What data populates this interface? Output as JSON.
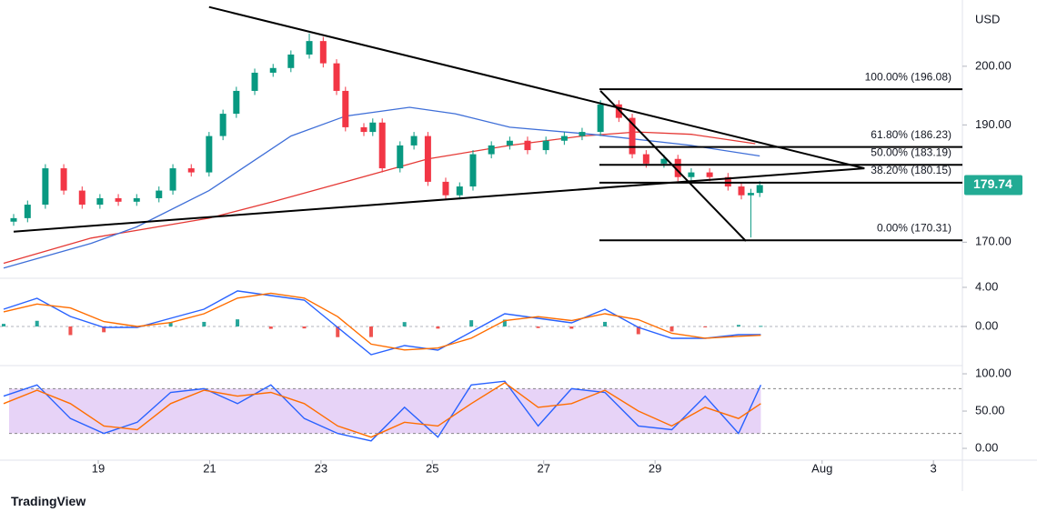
{
  "chart_data": [
    {
      "type": "candlestick",
      "currency": "USD",
      "candles": {
        "x": [
          17.48,
          17.73,
          18.05,
          18.38,
          18.71,
          19.03,
          19.36,
          19.69,
          20.09,
          20.34,
          20.67,
          20.99,
          21.24,
          21.48,
          21.81,
          22.14,
          22.46,
          22.79,
          23.04,
          23.28,
          23.44,
          23.77,
          23.93,
          24.1,
          24.42,
          24.67,
          24.92,
          25.24,
          25.49,
          25.73,
          26.06,
          26.39,
          26.71,
          27.04,
          27.37,
          27.69,
          28.02,
          28.35,
          28.59,
          28.84,
          29.16,
          29.41,
          29.65,
          29.98,
          30.31,
          30.55,
          30.72,
          30.88
        ],
        "open": [
          173.5,
          174.1,
          176.4,
          182.6,
          178.8,
          176.4,
          177.5,
          176.9,
          177.5,
          178.8,
          182.6,
          181.9,
          188.1,
          191.9,
          195.8,
          198.9,
          199.7,
          202.0,
          204.3,
          200.5,
          195.8,
          189.6,
          188.8,
          190.4,
          182.6,
          186.5,
          188.1,
          180.3,
          178.0,
          179.5,
          185.0,
          186.5,
          187.3,
          185.7,
          187.3,
          188.1,
          188.8,
          193.5,
          191.2,
          185.0,
          183.4,
          184.2,
          181.1,
          181.9,
          181.1,
          179.5,
          178.0,
          178.4
        ],
        "high": [
          174.8,
          177.1,
          183.3,
          183.3,
          179.5,
          178.2,
          178.2,
          178.2,
          179.5,
          183.3,
          183.3,
          188.8,
          192.6,
          196.5,
          199.6,
          200.4,
          202.7,
          205.6,
          205.0,
          201.2,
          196.5,
          190.3,
          191.1,
          191.1,
          187.2,
          188.8,
          188.8,
          181.0,
          180.2,
          185.7,
          187.2,
          188.0,
          188.0,
          188.0,
          188.8,
          189.5,
          194.2,
          194.2,
          191.9,
          185.7,
          184.9,
          184.9,
          182.6,
          182.6,
          181.8,
          180.2,
          179.1,
          180.4
        ],
        "low": [
          172.8,
          173.4,
          175.7,
          178.1,
          175.7,
          175.7,
          176.2,
          176.2,
          176.8,
          178.1,
          181.2,
          181.2,
          187.4,
          191.2,
          195.1,
          198.2,
          199.0,
          201.3,
          199.8,
          195.1,
          188.9,
          188.1,
          188.1,
          181.9,
          181.9,
          185.8,
          179.6,
          177.3,
          177.3,
          178.8,
          184.3,
          185.8,
          185.0,
          185.0,
          186.6,
          187.4,
          188.1,
          190.5,
          184.3,
          182.7,
          182.7,
          180.4,
          180.4,
          180.4,
          178.8,
          177.3,
          170.8,
          177.7
        ],
        "close": [
          174.1,
          176.4,
          182.6,
          178.8,
          176.4,
          177.5,
          176.9,
          177.5,
          178.8,
          182.6,
          181.9,
          188.1,
          191.9,
          195.8,
          198.9,
          199.7,
          202.0,
          204.3,
          200.5,
          195.8,
          189.6,
          188.8,
          190.4,
          182.6,
          186.5,
          188.1,
          180.3,
          178.0,
          179.5,
          185.0,
          186.5,
          187.3,
          185.7,
          187.3,
          188.1,
          188.8,
          193.5,
          191.2,
          185.0,
          183.4,
          184.2,
          181.1,
          181.9,
          181.1,
          179.5,
          178.0,
          178.4,
          179.74
        ],
        "up_color": "#089981",
        "down_color": "#f23645"
      },
      "moving_averages": [
        {
          "color": "#e53935",
          "x": [
            17.3,
            18.87,
            20.99,
            22.14,
            23.44,
            24.92,
            26.39,
            27.69,
            28.67,
            29.65,
            30.8
          ],
          "values": [
            166.4,
            170.7,
            174.1,
            176.9,
            180.3,
            184.2,
            186.5,
            188.1,
            188.8,
            188.4,
            186.8
          ]
        },
        {
          "color": "#3f6fd8",
          "x": [
            17.3,
            18.87,
            19.69,
            20.99,
            22.46,
            23.44,
            24.59,
            25.41,
            26.39,
            27.86,
            29.65,
            30.88
          ],
          "values": [
            165.6,
            169.8,
            172.6,
            178.8,
            188.1,
            191.5,
            193.0,
            191.9,
            189.6,
            188.4,
            186.5,
            184.7
          ]
        }
      ],
      "trendlines": [
        {
          "x": [
            20.99,
            32.76
          ],
          "values": [
            210.1,
            182.6
          ]
        },
        {
          "x": [
            17.48,
            32.76
          ],
          "values": [
            171.8,
            182.6
          ]
        },
        {
          "x": [
            28.02,
            30.63
          ],
          "values": [
            195.8,
            170.2
          ]
        }
      ],
      "fib": {
        "x_start": 28.0,
        "levels": [
          {
            "value": 196.08,
            "label": "100.00% (196.08)"
          },
          {
            "value": 186.23,
            "label": "61.80% (186.23)"
          },
          {
            "value": 183.19,
            "label": "50.00% (183.19)"
          },
          {
            "value": 180.15,
            "label": "38.20% (180.15)"
          },
          {
            "value": 170.31,
            "label": "0.00% (170.31)"
          }
        ]
      },
      "last_price_color": "#22ab94",
      "xlim": [
        17.235,
        34.52
      ],
      "xticks": [
        19,
        21,
        23,
        25,
        27,
        29,
        {
          "value": 32,
          "label": "Aug"
        },
        {
          "value": 34,
          "label": "3"
        }
      ],
      "ylim": [
        164.0,
        211.3
      ],
      "yticks": [
        {
          "value": 200,
          "label": "200.00"
        },
        {
          "value": 190,
          "label": "190.00"
        },
        {
          "value": 170,
          "label": "170.00"
        }
      ]
    },
    {
      "type": "macd",
      "x": [
        17.3,
        17.9,
        18.5,
        19.1,
        19.7,
        20.3,
        20.9,
        21.5,
        22.1,
        22.7,
        23.3,
        23.9,
        24.5,
        25.1,
        25.7,
        26.3,
        26.9,
        27.5,
        28.1,
        28.7,
        29.3,
        29.9,
        30.5,
        30.9
      ],
      "series": [
        {
          "color": "#2962ff",
          "values": [
            1.77,
            2.88,
            1.02,
            -0.09,
            -0.09,
            0.84,
            1.77,
            3.63,
            3.16,
            2.7,
            -0.09,
            -2.88,
            -1.95,
            -2.42,
            -0.56,
            1.3,
            0.84,
            0.37,
            1.77,
            -0.09,
            -1.21,
            -1.21,
            -0.84,
            -0.84
          ]
        },
        {
          "color": "#ff6d00",
          "values": [
            1.5,
            2.3,
            1.9,
            0.5,
            0.0,
            0.4,
            1.3,
            2.9,
            3.4,
            2.9,
            1.0,
            -1.8,
            -2.4,
            -2.2,
            -1.2,
            0.6,
            1.0,
            0.6,
            1.3,
            0.7,
            -0.7,
            -1.2,
            -1.0,
            -0.9
          ]
        }
      ],
      "histogram": {
        "values": [
          0.27,
          0.58,
          -0.88,
          -0.59,
          -0.09,
          0.44,
          0.47,
          0.73,
          -0.24,
          -0.2,
          -1.09,
          -1.08,
          0.45,
          -0.22,
          0.64,
          0.7,
          -0.16,
          -0.23,
          0.47,
          -0.79,
          -0.51,
          -0.01,
          0.16,
          0.06
        ],
        "up_color": "#26a69a",
        "down_color": "#ef5350"
      },
      "xlim": [
        17.235,
        34.52
      ],
      "ylim": [
        -3.81,
        4.74
      ],
      "yticks": [
        {
          "value": 4,
          "label": "4.00"
        },
        {
          "value": 0,
          "label": "0.00"
        }
      ]
    },
    {
      "type": "line",
      "x": [
        17.3,
        17.9,
        18.5,
        19.1,
        19.7,
        20.3,
        20.9,
        21.5,
        22.1,
        22.7,
        23.3,
        23.9,
        24.5,
        25.1,
        25.7,
        26.3,
        26.9,
        27.5,
        28.1,
        28.7,
        29.3,
        29.9,
        30.5,
        30.9
      ],
      "series": [
        {
          "color": "#2962ff",
          "values": [
            70,
            85,
            40,
            20,
            35,
            75,
            80,
            60,
            85,
            40,
            20,
            10,
            55,
            15,
            85,
            90,
            30,
            80,
            75,
            30,
            25,
            70,
            20,
            85
          ]
        },
        {
          "color": "#ff6d00",
          "values": [
            60,
            78,
            60,
            30,
            25,
            60,
            78,
            70,
            75,
            60,
            30,
            15,
            35,
            30,
            60,
            88,
            55,
            60,
            78,
            50,
            30,
            55,
            40,
            60
          ]
        }
      ],
      "band": {
        "range": [
          20,
          80
        ],
        "color": "#e1c8f5"
      },
      "xlim": [
        17.235,
        34.52
      ],
      "ylim": [
        -14.6,
        109.8
      ],
      "yticks": [
        {
          "value": 100,
          "label": "100.00"
        },
        {
          "value": 50,
          "label": "50.00"
        },
        {
          "value": 0,
          "label": "0.00"
        }
      ]
    }
  ],
  "brand": "TradingView"
}
